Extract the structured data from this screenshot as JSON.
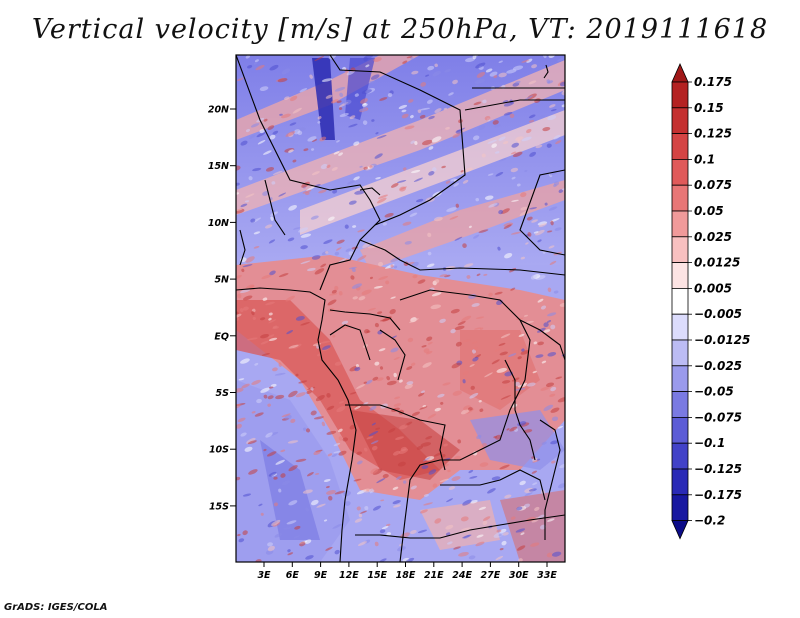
{
  "title": "Vertical velocity [m/s] at 250hPa, VT: 2019111618",
  "credit": "GrADS: IGES/COLA",
  "map": {
    "lat_labels": [
      "20N",
      "15N",
      "10N",
      "5N",
      "EQ",
      "5S",
      "10S",
      "15S"
    ],
    "lon_labels": [
      "3E",
      "6E",
      "9E",
      "12E",
      "15E",
      "18E",
      "21E",
      "24E",
      "27E",
      "30E",
      "33E"
    ],
    "field_description_colors": {
      "positive": "#e05050",
      "negative": "#5a5ae0"
    }
  },
  "colorbar": {
    "labels": [
      "0.175",
      "0.15",
      "0.125",
      "0.1",
      "0.075",
      "0.05",
      "0.025",
      "0.0125",
      "0.005",
      "−0.005",
      "−0.0125",
      "−0.025",
      "−0.05",
      "−0.075",
      "−0.1",
      "−0.125",
      "−0.175",
      "−0.2"
    ],
    "colors": [
      "#a01818",
      "#b42222",
      "#c43030",
      "#d44444",
      "#e05a5a",
      "#e87676",
      "#f09a9a",
      "#f8c0c0",
      "#fde4e4",
      "#ffffff",
      "#dcdcfc",
      "#bcbcf4",
      "#9a9aec",
      "#7a7ae2",
      "#5c5cd6",
      "#4242c8",
      "#2a2ab6",
      "#1818a0",
      "#0c0c88"
    ]
  }
}
